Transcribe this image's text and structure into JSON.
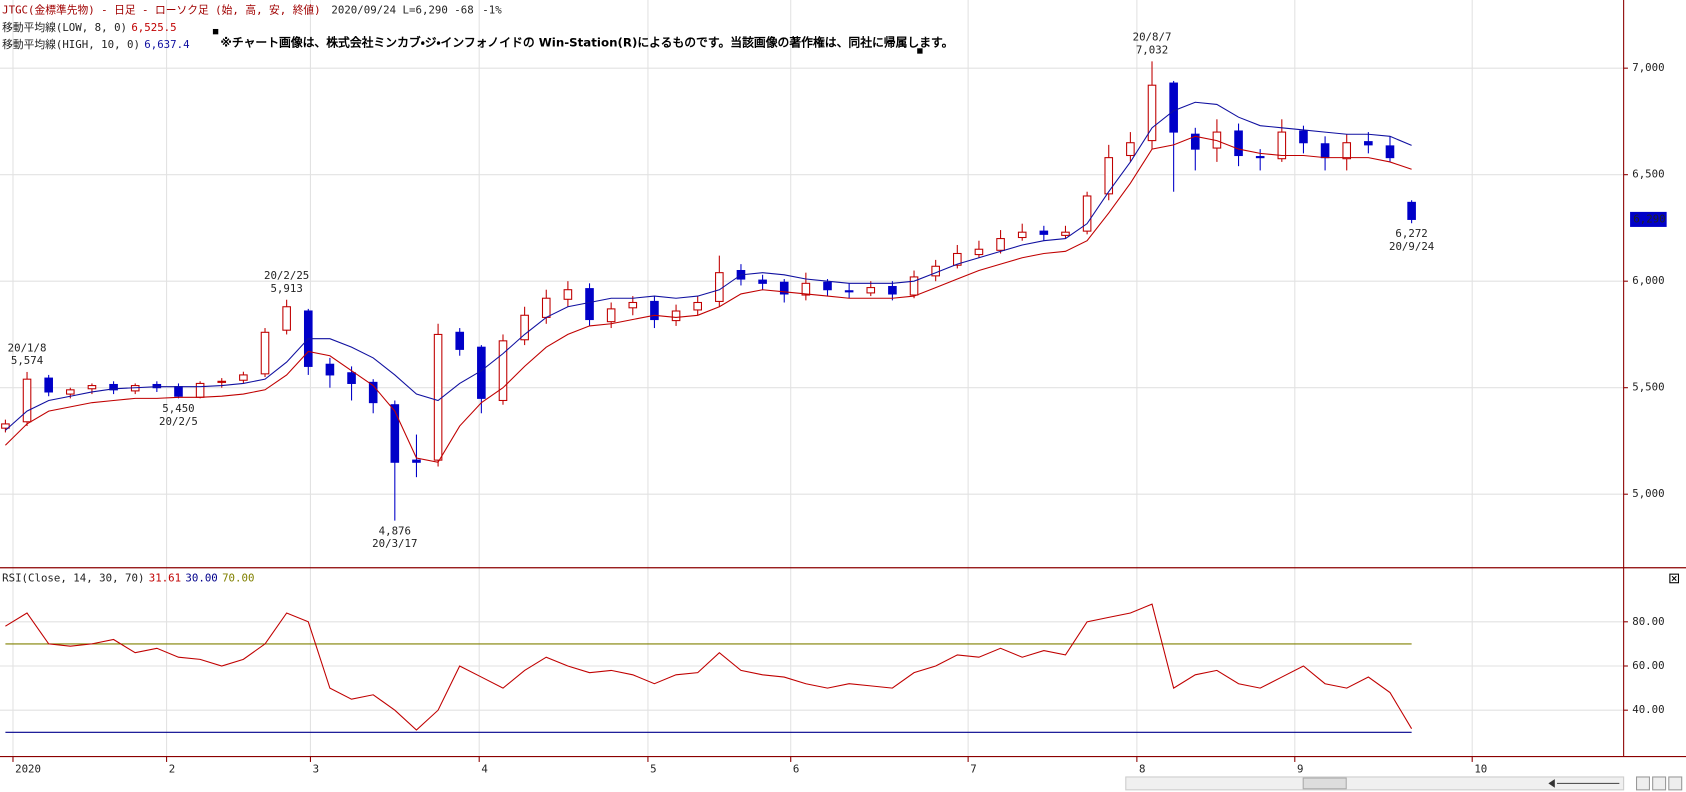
{
  "chart_data": [
    {
      "type": "candlestick",
      "header": {
        "symbol": "JTGC(金標準先物) - 日足 - ローソク足 (始, 高, 安, 終値)",
        "date": "2020/09/24",
        "last": "L=6,290",
        "change": -68,
        "change_pct": "-1%"
      },
      "note": "※チャート画像は、株式会社ミンカブ・ジ・インフォノイドの Win-Station(R)によるものです。当該画像の著作権は、同社に帰属します。",
      "up_color": "#c00000",
      "down_color": "#0000c8",
      "xlim": [
        -0.25,
        74.8
      ],
      "ylim": [
        4660,
        7320
      ],
      "yticks": [
        {
          "value": 5000,
          "label": "5,000"
        },
        {
          "value": 5500,
          "label": "5,500"
        },
        {
          "value": 6000,
          "label": "6,000"
        },
        {
          "value": 6500,
          "label": "6,500"
        },
        {
          "value": 7000,
          "label": "7,000"
        }
      ],
      "xticks": [
        {
          "value": 0.35,
          "label": "2020"
        },
        {
          "value": 7.45,
          "label": "2"
        },
        {
          "value": 14.1,
          "label": "3"
        },
        {
          "value": 21.9,
          "label": "4"
        },
        {
          "value": 29.7,
          "label": "5"
        },
        {
          "value": 36.3,
          "label": "6"
        },
        {
          "value": 44.5,
          "label": "7"
        },
        {
          "value": 52.3,
          "label": "8"
        },
        {
          "value": 59.6,
          "label": "9"
        },
        {
          "value": 67.8,
          "label": "10"
        }
      ],
      "grid": true,
      "open": [
        5310,
        5340,
        5545,
        5470,
        5495,
        5515,
        5485,
        5515,
        5505,
        5455,
        5525,
        5535,
        5565,
        5770,
        5860,
        5610,
        5570,
        5525,
        5420,
        5160,
        5160,
        5760,
        5690,
        5440,
        5725,
        5830,
        5915,
        5965,
        5810,
        5875,
        5905,
        5815,
        5865,
        5905,
        6050,
        6005,
        5995,
        5935,
        5995,
        5955,
        5945,
        5975,
        5935,
        6025,
        6075,
        6125,
        6145,
        6205,
        6235,
        6215,
        6235,
        6410,
        6590,
        6660,
        6930,
        6690,
        6625,
        6705,
        6585,
        6575,
        6705,
        6645,
        6575,
        6655,
        6635,
        6370
      ],
      "high": [
        5350,
        5574,
        5560,
        5500,
        5520,
        5530,
        5520,
        5530,
        5520,
        5530,
        5545,
        5575,
        5780,
        5913,
        5870,
        5640,
        5600,
        5540,
        5440,
        5280,
        5800,
        5780,
        5700,
        5750,
        5880,
        5960,
        6000,
        5990,
        5900,
        5930,
        5930,
        5890,
        5930,
        6120,
        6080,
        6030,
        6010,
        6040,
        6010,
        5990,
        6000,
        6000,
        6050,
        6100,
        6170,
        6190,
        6240,
        6270,
        6260,
        6260,
        6420,
        6640,
        6700,
        7032,
        6940,
        6720,
        6760,
        6740,
        6620,
        6760,
        6730,
        6680,
        6690,
        6700,
        6680,
        6380
      ],
      "low": [
        5290,
        5320,
        5460,
        5450,
        5470,
        5470,
        5470,
        5480,
        5450,
        5450,
        5500,
        5520,
        5550,
        5750,
        5560,
        5500,
        5440,
        5380,
        4876,
        5080,
        5130,
        5650,
        5380,
        5420,
        5700,
        5800,
        5880,
        5790,
        5780,
        5840,
        5780,
        5790,
        5840,
        5880,
        5980,
        5960,
        5900,
        5910,
        5930,
        5920,
        5930,
        5910,
        5920,
        6000,
        6060,
        6110,
        6130,
        6190,
        6190,
        6200,
        6220,
        6380,
        6560,
        6620,
        6420,
        6520,
        6560,
        6540,
        6520,
        6560,
        6600,
        6520,
        6520,
        6600,
        6560,
        6272
      ],
      "close": [
        5330,
        5540,
        5480,
        5490,
        5510,
        5490,
        5510,
        5500,
        5460,
        5520,
        5530,
        5560,
        5760,
        5880,
        5600,
        5560,
        5520,
        5430,
        5150,
        5150,
        5750,
        5680,
        5450,
        5720,
        5840,
        5920,
        5960,
        5820,
        5870,
        5900,
        5820,
        5860,
        5900,
        6040,
        6010,
        5990,
        5940,
        5990,
        5960,
        5950,
        5970,
        5940,
        6020,
        6070,
        6130,
        6150,
        6200,
        6230,
        6220,
        6230,
        6400,
        6580,
        6650,
        6920,
        6700,
        6620,
        6700,
        6590,
        6580,
        6700,
        6650,
        6580,
        6650,
        6640,
        6580,
        6290
      ],
      "series": [
        {
          "name": "移動平均線(LOW, 8, 0)",
          "color": "#c00000",
          "last_label": "6,525.5",
          "values": [
            5230,
            5330,
            5390,
            5410,
            5430,
            5440,
            5450,
            5450,
            5455,
            5455,
            5460,
            5470,
            5490,
            5560,
            5670,
            5650,
            5580,
            5510,
            5390,
            5170,
            5150,
            5320,
            5430,
            5500,
            5600,
            5690,
            5750,
            5790,
            5800,
            5820,
            5840,
            5830,
            5840,
            5880,
            5940,
            5960,
            5950,
            5940,
            5930,
            5920,
            5920,
            5920,
            5930,
            5970,
            6010,
            6050,
            6080,
            6110,
            6130,
            6140,
            6190,
            6320,
            6460,
            6620,
            6640,
            6680,
            6660,
            6620,
            6600,
            6590,
            6590,
            6580,
            6580,
            6580,
            6560,
            6525.5
          ]
        },
        {
          "name": "移動平均線(HIGH, 10, 0)",
          "color": "#1010a0",
          "last_label": "6,637.4",
          "values": [
            5300,
            5390,
            5440,
            5460,
            5480,
            5495,
            5500,
            5505,
            5505,
            5505,
            5510,
            5520,
            5540,
            5620,
            5730,
            5730,
            5690,
            5640,
            5560,
            5470,
            5440,
            5520,
            5580,
            5660,
            5750,
            5830,
            5880,
            5900,
            5920,
            5920,
            5930,
            5920,
            5930,
            5960,
            6030,
            6040,
            6030,
            6010,
            6000,
            5990,
            5990,
            5990,
            6000,
            6040,
            6080,
            6110,
            6140,
            6170,
            6190,
            6200,
            6270,
            6420,
            6560,
            6720,
            6800,
            6840,
            6830,
            6770,
            6730,
            6720,
            6710,
            6700,
            6690,
            6690,
            6680,
            6637.4
          ]
        }
      ],
      "annotations": [
        {
          "index": 1,
          "position": "above",
          "date": "20/1/8",
          "value": 5574,
          "label": "5,574"
        },
        {
          "index": 8,
          "position": "below",
          "date": "20/2/5",
          "value": 5450,
          "label": "5,450"
        },
        {
          "index": 13,
          "position": "above",
          "date": "20/2/25",
          "value": 5913,
          "label": "5,913"
        },
        {
          "index": 18,
          "position": "below",
          "date": "20/3/17",
          "value": 4876,
          "label": "4,876"
        },
        {
          "index": 53,
          "position": "above",
          "date": "20/8/7",
          "value": 7032,
          "label": "7,032"
        },
        {
          "index": 65,
          "position": "below",
          "date": "20/9/24",
          "value": 6272,
          "label": "6,272"
        }
      ],
      "last_tag": {
        "value": 6290,
        "label": "6,290",
        "color": "#0000c8"
      }
    },
    {
      "type": "line",
      "title": "RSI(Close, 14, 30, 70)",
      "xlim": [
        -0.25,
        74.8
      ],
      "ylim": [
        19,
        104
      ],
      "yticks": [
        {
          "value": 40,
          "label": "40.00"
        },
        {
          "value": 60,
          "label": "60.00"
        },
        {
          "value": 80,
          "label": "80.00"
        }
      ],
      "levels": [
        {
          "value": 30,
          "label": "30.00",
          "color": "#00008b"
        },
        {
          "value": 70,
          "label": "70.00",
          "color": "#808000"
        }
      ],
      "series": [
        {
          "color": "#c00000",
          "last_label": "31.61",
          "values": [
            78,
            84,
            70,
            69,
            70,
            72,
            66,
            68,
            64,
            63,
            60,
            63,
            70,
            84,
            80,
            50,
            45,
            47,
            40,
            31,
            40,
            60,
            55,
            50,
            58,
            64,
            60,
            57,
            58,
            56,
            52,
            56,
            57,
            66,
            58,
            56,
            55,
            52,
            50,
            52,
            51,
            50,
            57,
            60,
            65,
            64,
            68,
            64,
            67,
            65,
            80,
            82,
            84,
            88,
            50,
            56,
            58,
            52,
            50,
            55,
            60,
            52,
            50,
            55,
            48,
            31.61
          ]
        }
      ]
    }
  ]
}
